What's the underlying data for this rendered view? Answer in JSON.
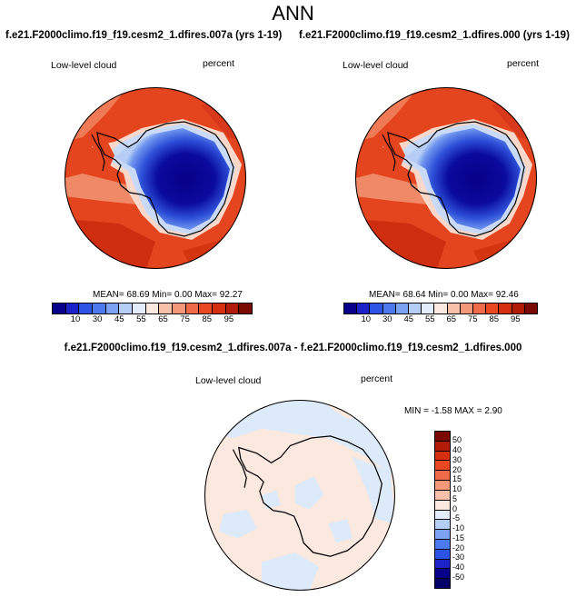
{
  "figure": {
    "title": "ANN"
  },
  "panels": [
    {
      "title": "f.e21.F2000climo.f19_f19.cesm2_1.dfires.007a (yrs 1-19)",
      "variable": "Low-level cloud",
      "units": "percent",
      "stats": "MEAN= 68.69  Min=  0.00  Max=  92.27"
    },
    {
      "title": "f.e21.F2000climo.f19_f19.cesm2_1.dfires.000 (yrs 1-19)",
      "variable": "Low-level cloud",
      "units": "percent",
      "stats": "MEAN= 68.64  Min=  0.00  Max=  92.46"
    }
  ],
  "diff_panel": {
    "title": "f.e21.F2000climo.f19_f19.cesm2_1.dfires.007a - f.e21.F2000climo.f19_f19.cesm2_1.dfires.000",
    "variable": "Low-level cloud",
    "units": "percent",
    "stats": "MIN =  -1.58 MAX =   2.90"
  },
  "colorbar_main": {
    "labels": [
      "10",
      "30",
      "45",
      "55",
      "65",
      "75",
      "85",
      "95"
    ],
    "colors": [
      "#08008a",
      "#1a22c8",
      "#2c52e6",
      "#4c7aee",
      "#7ea2f2",
      "#b4cef6",
      "#e2ecfa",
      "#fbe8df",
      "#f8c0a8",
      "#f4987a",
      "#ef6a48",
      "#e94823",
      "#d4300f",
      "#b01c06",
      "#7a0a00"
    ]
  },
  "colorbar_diff": {
    "labels": [
      "50",
      "40",
      "30",
      "20",
      "15",
      "10",
      "5",
      "0",
      "-5",
      "-10",
      "-15",
      "-20",
      "-30",
      "-40",
      "-50"
    ],
    "colors": [
      "#7a0a00",
      "#b01c06",
      "#d4300f",
      "#e94823",
      "#ef6a48",
      "#f4987a",
      "#f8c0a8",
      "#fbe8df",
      "#e2ecfa",
      "#b4cef6",
      "#7ea2f2",
      "#4c7aee",
      "#2c52e6",
      "#1a22c8",
      "#08008a",
      "#050068"
    ]
  }
}
